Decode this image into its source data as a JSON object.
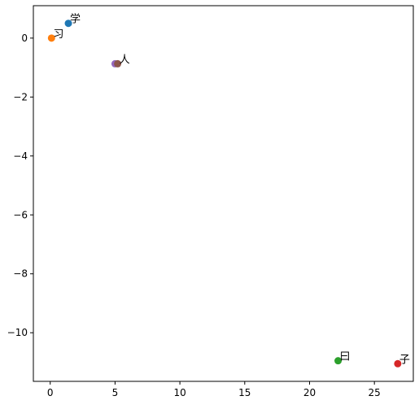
{
  "chart_data": {
    "type": "scatter",
    "title": "",
    "xlabel": "",
    "ylabel": "",
    "xlim": [
      -1.3,
      28.0
    ],
    "ylim": [
      -11.65,
      1.1
    ],
    "xticks": [
      0,
      5,
      10,
      15,
      20,
      25
    ],
    "xtick_labels": [
      "0",
      "5",
      "10",
      "15",
      "20",
      "25"
    ],
    "yticks": [
      0,
      -2,
      -4,
      -6,
      -8,
      -10
    ],
    "ytick_labels": [
      "0",
      "−2",
      "−4",
      "−6",
      "−8",
      "−10"
    ],
    "grid": false,
    "points": [
      {
        "label": "学",
        "x": 1.4,
        "y": 0.5,
        "color": "#1f77b4"
      },
      {
        "label": "习",
        "x": 0.1,
        "y": 0.0,
        "color": "#ff7f0e"
      },
      {
        "label": "曰",
        "x": 22.2,
        "y": -10.95,
        "color": "#2ca02c"
      },
      {
        "label": "子",
        "x": 26.8,
        "y": -11.05,
        "color": "#d62728"
      },
      {
        "label": "",
        "x": 5.0,
        "y": -0.87,
        "color": "#9467bd"
      },
      {
        "label": "人",
        "x": 5.2,
        "y": -0.87,
        "color": "#8c564b"
      }
    ]
  }
}
